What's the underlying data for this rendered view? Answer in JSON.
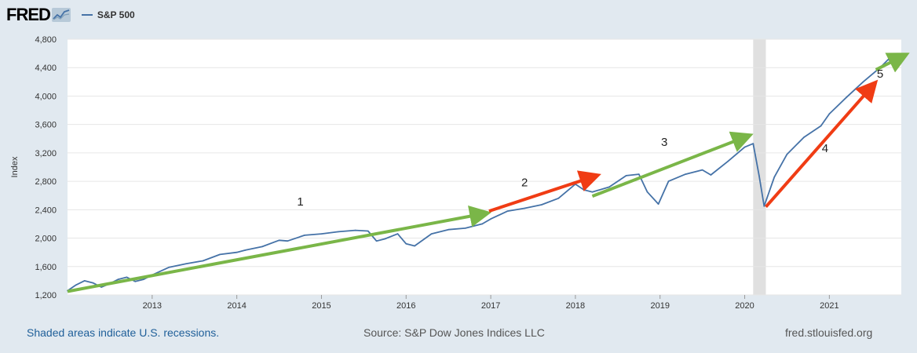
{
  "header": {
    "logo": "FRED",
    "legend_label": "S&P 500"
  },
  "footer": {
    "recession_note": "Shaded areas indicate U.S. recessions.",
    "source": "Source: S&P Dow Jones Indices LLC",
    "site": "fred.stlouisfed.org"
  },
  "colors": {
    "series": "#4572a7",
    "up_arrow": "#7ab648",
    "down_arrow": "#f03c14",
    "recession": "#e0e0e0",
    "background": "#e1e9f0"
  },
  "chart_data": {
    "type": "line",
    "title": "",
    "ylabel": "Index",
    "ylim": [
      1200,
      4800
    ],
    "yticks": [
      1200,
      1600,
      2000,
      2400,
      2800,
      3200,
      3600,
      4000,
      4400,
      4800
    ],
    "ytick_labels": [
      "1,200",
      "1,600",
      "2,000",
      "2,400",
      "2,800",
      "3,200",
      "3,600",
      "4,000",
      "4,400",
      "4,800"
    ],
    "xlim": [
      2012.0,
      2021.85
    ],
    "xticks": [
      2013,
      2014,
      2015,
      2016,
      2017,
      2018,
      2019,
      2020,
      2021
    ],
    "xtick_labels": [
      "2013",
      "2014",
      "2015",
      "2016",
      "2017",
      "2018",
      "2019",
      "2020",
      "2021"
    ],
    "grid": true,
    "recessions": [
      [
        2020.1,
        2020.25
      ]
    ],
    "series": [
      {
        "name": "S&P 500",
        "x": [
          2012.0,
          2012.1,
          2012.2,
          2012.3,
          2012.4,
          2012.5,
          2012.6,
          2012.7,
          2012.8,
          2012.9,
          2013.0,
          2013.2,
          2013.4,
          2013.6,
          2013.8,
          2014.0,
          2014.1,
          2014.3,
          2014.5,
          2014.6,
          2014.8,
          2015.0,
          2015.2,
          2015.4,
          2015.55,
          2015.65,
          2015.75,
          2015.9,
          2016.0,
          2016.1,
          2016.3,
          2016.5,
          2016.7,
          2016.9,
          2017.0,
          2017.2,
          2017.4,
          2017.6,
          2017.8,
          2018.0,
          2018.1,
          2018.2,
          2018.4,
          2018.6,
          2018.75,
          2018.85,
          2018.98,
          2019.1,
          2019.3,
          2019.5,
          2019.6,
          2019.8,
          2020.0,
          2020.1,
          2020.17,
          2020.23,
          2020.35,
          2020.5,
          2020.7,
          2020.9,
          2021.0,
          2021.2,
          2021.4,
          2021.6,
          2021.7,
          2021.75,
          2021.85
        ],
        "values": [
          1260,
          1340,
          1400,
          1370,
          1310,
          1360,
          1420,
          1450,
          1390,
          1420,
          1480,
          1590,
          1640,
          1680,
          1770,
          1800,
          1830,
          1880,
          1970,
          1960,
          2040,
          2060,
          2090,
          2110,
          2100,
          1960,
          1990,
          2060,
          1920,
          1890,
          2060,
          2120,
          2140,
          2200,
          2270,
          2380,
          2420,
          2470,
          2560,
          2760,
          2680,
          2650,
          2720,
          2880,
          2900,
          2650,
          2480,
          2800,
          2900,
          2960,
          2890,
          3080,
          3280,
          3330,
          2880,
          2450,
          2860,
          3180,
          3420,
          3580,
          3750,
          3980,
          4200,
          4400,
          4520,
          4440,
          4570
        ]
      }
    ],
    "annotations": [
      {
        "label": "1",
        "kind": "up",
        "from": [
          2012.0,
          1250
        ],
        "to": [
          2016.9,
          2340
        ],
        "label_at": [
          2014.75,
          2460
        ]
      },
      {
        "label": "2",
        "kind": "down",
        "from": [
          2016.98,
          2380
        ],
        "to": [
          2018.2,
          2860
        ],
        "label_at": [
          2017.4,
          2730
        ]
      },
      {
        "label": "3",
        "kind": "up",
        "from": [
          2018.2,
          2590
        ],
        "to": [
          2020.0,
          3420
        ],
        "label_at": [
          2019.05,
          3300
        ]
      },
      {
        "label": "4",
        "kind": "down",
        "from": [
          2020.25,
          2440
        ],
        "to": [
          2021.5,
          4130
        ],
        "label_at": [
          2020.95,
          3210
        ]
      },
      {
        "label": "5",
        "kind": "up",
        "from": [
          2021.55,
          4370
        ],
        "to": [
          2021.85,
          4550
        ],
        "label_at": [
          2021.6,
          4260
        ]
      }
    ]
  }
}
